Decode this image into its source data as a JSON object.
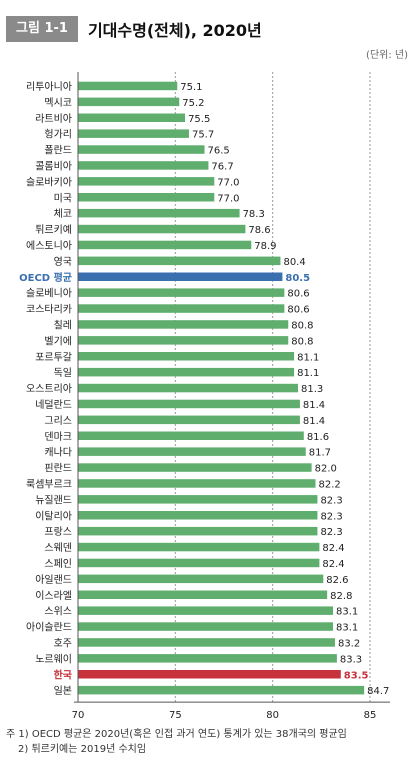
{
  "header": {
    "figure_label": "그림 1-1",
    "title": "기대수명(전체), 2020년",
    "unit": "(단위: 년)"
  },
  "notes": [
    "주 1) OECD 평균은 2020년(혹은 인접 과거 연도) 통계가 있는 38개국의 평균임",
    "2) 튀르키예는 2019년 수치임"
  ],
  "chart_data": {
    "type": "bar",
    "orientation": "horizontal",
    "xlim": [
      70,
      85
    ],
    "xticks": [
      70,
      75,
      80,
      85
    ],
    "grid": true,
    "colors": {
      "default": "#5fae6e",
      "oecd": "#3a6fb0",
      "korea": "#c8323c"
    },
    "categories": [
      "리투아니아",
      "멕시코",
      "라트비아",
      "헝가리",
      "폴란드",
      "콜롬비아",
      "슬로바키아",
      "미국",
      "체코",
      "튀르키예",
      "에스토니아",
      "영국",
      "OECD 평균",
      "슬로베니아",
      "코스타리카",
      "칠레",
      "벨기에",
      "포르투갈",
      "독일",
      "오스트리아",
      "네덜란드",
      "그리스",
      "덴마크",
      "캐나다",
      "핀란드",
      "룩셈부르크",
      "뉴질랜드",
      "이탈리아",
      "프랑스",
      "스웨덴",
      "스페인",
      "아일랜드",
      "이스라엘",
      "스위스",
      "아이슬란드",
      "호주",
      "노르웨이",
      "한국",
      "일본"
    ],
    "values": [
      75.1,
      75.2,
      75.5,
      75.7,
      76.5,
      76.7,
      77.0,
      77.0,
      78.3,
      78.6,
      78.9,
      80.4,
      80.5,
      80.6,
      80.6,
      80.8,
      80.8,
      81.1,
      81.1,
      81.3,
      81.4,
      81.4,
      81.6,
      81.7,
      82.0,
      82.2,
      82.3,
      82.3,
      82.3,
      82.4,
      82.4,
      82.6,
      82.8,
      83.1,
      83.1,
      83.2,
      83.3,
      83.5,
      84.7
    ],
    "value_labels": [
      "75.1",
      "75.2",
      "75.5",
      "75.7",
      "76.5",
      "76.7",
      "77.0",
      "77.0",
      "78.3",
      "78.6",
      "78.9",
      "80.4",
      "80.5",
      "80.6",
      "80.6",
      "80.8",
      "80.8",
      "81.1",
      "81.1",
      "81.3",
      "81.4",
      "81.4",
      "81.6",
      "81.7",
      "82.0",
      "82.2",
      "82.3",
      "82.3",
      "82.3",
      "82.4",
      "82.4",
      "82.6",
      "82.8",
      "83.1",
      "83.1",
      "83.2",
      "83.3",
      "83.5",
      "84.7"
    ],
    "highlight": {
      "OECD 평균": "oecd",
      "한국": "korea"
    }
  }
}
